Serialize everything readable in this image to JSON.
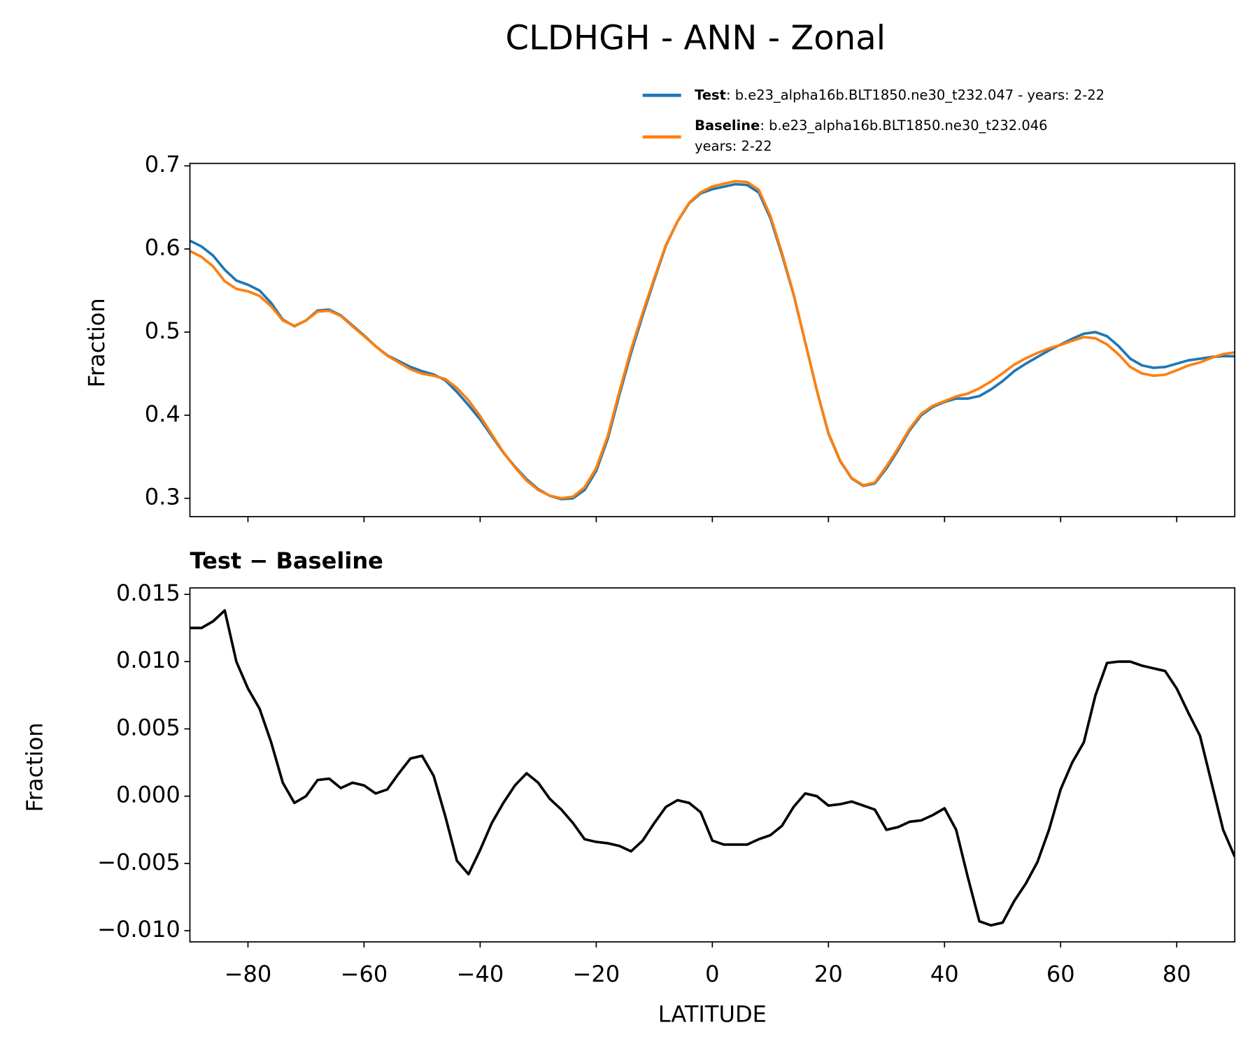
{
  "chart_data": [
    {
      "type": "line",
      "title": "CLDHGH - ANN - Zonal",
      "ylabel": "Fraction",
      "x": [
        -90,
        -88,
        -86,
        -84,
        -82,
        -80,
        -78,
        -76,
        -74,
        -72,
        -70,
        -68,
        -66,
        -64,
        -62,
        -60,
        -58,
        -56,
        -54,
        -52,
        -50,
        -48,
        -46,
        -44,
        -42,
        -40,
        -38,
        -36,
        -34,
        -32,
        -30,
        -28,
        -26,
        -24,
        -22,
        -20,
        -18,
        -16,
        -14,
        -12,
        -10,
        -8,
        -6,
        -4,
        -2,
        0,
        2,
        4,
        6,
        8,
        10,
        12,
        14,
        16,
        18,
        20,
        22,
        24,
        26,
        28,
        30,
        32,
        34,
        36,
        38,
        40,
        42,
        44,
        46,
        48,
        50,
        52,
        54,
        56,
        58,
        60,
        62,
        64,
        66,
        68,
        70,
        72,
        74,
        76,
        78,
        80,
        82,
        84,
        86,
        88,
        90
      ],
      "series": [
        {
          "name": "Test",
          "legend_text": [
            ": b.e23_alpha16b.BLT1850.ne30_t232.047 - years: 2-22"
          ],
          "color": "#1f77b4",
          "values": [
            0.61,
            0.603,
            0.592,
            0.575,
            0.562,
            0.557,
            0.55,
            0.535,
            0.515,
            0.507,
            0.514,
            0.526,
            0.527,
            0.52,
            0.508,
            0.496,
            0.483,
            0.472,
            0.465,
            0.458,
            0.453,
            0.449,
            0.442,
            0.428,
            0.412,
            0.395,
            0.375,
            0.355,
            0.338,
            0.323,
            0.311,
            0.303,
            0.299,
            0.3,
            0.31,
            0.333,
            0.372,
            0.425,
            0.475,
            0.52,
            0.563,
            0.604,
            0.633,
            0.655,
            0.667,
            0.672,
            0.675,
            0.678,
            0.677,
            0.668,
            0.637,
            0.593,
            0.545,
            0.488,
            0.43,
            0.378,
            0.345,
            0.324,
            0.315,
            0.318,
            0.336,
            0.358,
            0.382,
            0.4,
            0.41,
            0.416,
            0.42,
            0.42,
            0.423,
            0.431,
            0.441,
            0.453,
            0.462,
            0.47,
            0.478,
            0.485,
            0.492,
            0.498,
            0.5,
            0.495,
            0.483,
            0.468,
            0.46,
            0.457,
            0.458,
            0.462,
            0.466,
            0.468,
            0.47,
            0.471,
            0.471
          ]
        },
        {
          "name": "Baseline",
          "legend_text": [
            ": b.e23_alpha16b.BLT1850.ne30_t232.046",
            "years: 2-22"
          ],
          "color": "#ff7f0e",
          "values": [
            0.5975,
            0.5905,
            0.579,
            0.5612,
            0.552,
            0.549,
            0.5435,
            0.531,
            0.514,
            0.5075,
            0.514,
            0.5248,
            0.5257,
            0.5194,
            0.507,
            0.4952,
            0.4828,
            0.4715,
            0.4633,
            0.4552,
            0.45,
            0.4475,
            0.4435,
            0.4328,
            0.4178,
            0.399,
            0.377,
            0.3555,
            0.3372,
            0.3213,
            0.31,
            0.3032,
            0.3,
            0.302,
            0.3132,
            0.3364,
            0.3755,
            0.4287,
            0.4791,
            0.5233,
            0.565,
            0.6048,
            0.6333,
            0.6555,
            0.6682,
            0.6753,
            0.6786,
            0.6816,
            0.6806,
            0.6712,
            0.6399,
            0.5952,
            0.5458,
            0.4878,
            0.43,
            0.3787,
            0.3456,
            0.3244,
            0.3157,
            0.319,
            0.3385,
            0.3603,
            0.3839,
            0.4018,
            0.4114,
            0.4169,
            0.4225,
            0.426,
            0.4323,
            0.4406,
            0.4504,
            0.4608,
            0.4685,
            0.4749,
            0.4805,
            0.4845,
            0.4895,
            0.494,
            0.4925,
            0.4851,
            0.473,
            0.458,
            0.4503,
            0.4475,
            0.4487,
            0.454,
            0.4598,
            0.4635,
            0.469,
            0.4735,
            0.4755
          ]
        }
      ],
      "xlim": [
        -90,
        90
      ],
      "ylim": [
        0.278,
        0.703
      ],
      "yticks": [
        0.3,
        0.4,
        0.5,
        0.6,
        0.7
      ]
    },
    {
      "type": "line",
      "title": "Test − Baseline",
      "ylabel": "Fraction",
      "xlabel": "LATITUDE",
      "x": [
        -90,
        -88,
        -86,
        -84,
        -82,
        -80,
        -78,
        -76,
        -74,
        -72,
        -70,
        -68,
        -66,
        -64,
        -62,
        -60,
        -58,
        -56,
        -54,
        -52,
        -50,
        -48,
        -46,
        -44,
        -42,
        -40,
        -38,
        -36,
        -34,
        -32,
        -30,
        -28,
        -26,
        -24,
        -22,
        -20,
        -18,
        -16,
        -14,
        -12,
        -10,
        -8,
        -6,
        -4,
        -2,
        0,
        2,
        4,
        6,
        8,
        10,
        12,
        14,
        16,
        18,
        20,
        22,
        24,
        26,
        28,
        30,
        32,
        34,
        36,
        38,
        40,
        42,
        44,
        46,
        48,
        50,
        52,
        54,
        56,
        58,
        60,
        62,
        64,
        66,
        68,
        70,
        72,
        74,
        76,
        78,
        80,
        82,
        84,
        86,
        88,
        90
      ],
      "series": [
        {
          "color": "#000000",
          "values": [
            0.0125,
            0.0125,
            0.013,
            0.0138,
            0.01,
            0.008,
            0.0065,
            0.004,
            0.001,
            -0.0005,
            0.0,
            0.0012,
            0.0013,
            0.0006,
            0.001,
            0.0008,
            0.0002,
            0.0005,
            0.0017,
            0.0028,
            0.003,
            0.0015,
            -0.0015,
            -0.0048,
            -0.0058,
            -0.004,
            -0.002,
            -0.0005,
            0.0008,
            0.0017,
            0.001,
            -0.0002,
            -0.001,
            -0.002,
            -0.0032,
            -0.0034,
            -0.0035,
            -0.0037,
            -0.0041,
            -0.0033,
            -0.002,
            -0.0008,
            -0.0003,
            -0.0005,
            -0.0012,
            -0.0033,
            -0.0036,
            -0.0036,
            -0.0036,
            -0.0032,
            -0.0029,
            -0.0022,
            -0.0008,
            0.0002,
            0.0,
            -0.0007,
            -0.0006,
            -0.0004,
            -0.0007,
            -0.001,
            -0.0025,
            -0.0023,
            -0.0019,
            -0.0018,
            -0.0014,
            -0.0009,
            -0.0025,
            -0.006,
            -0.0093,
            -0.0096,
            -0.0094,
            -0.0078,
            -0.0065,
            -0.0049,
            -0.0025,
            0.0005,
            0.0025,
            0.004,
            0.0075,
            0.0099,
            0.01,
            0.01,
            0.0097,
            0.0095,
            0.0093,
            0.008,
            0.0062,
            0.0045,
            0.001,
            -0.0025,
            -0.0045
          ]
        }
      ],
      "xlim": [
        -90,
        90
      ],
      "ylim": [
        -0.01083,
        0.01548
      ],
      "yticks": [
        {
          "value": -0.01,
          "label": "−0.010"
        },
        {
          "value": -0.005,
          "label": "−0.005"
        },
        {
          "value": 0,
          "label": "0.000"
        },
        {
          "value": 0.005,
          "label": "0.005"
        },
        {
          "value": 0.01,
          "label": "0.010"
        },
        {
          "value": 0.015,
          "label": "0.015"
        }
      ],
      "xticks": [
        {
          "value": -80,
          "label": "−80"
        },
        {
          "value": -60,
          "label": "−60"
        },
        {
          "value": -40,
          "label": "−40"
        },
        {
          "value": -20,
          "label": "−20"
        },
        0,
        20,
        40,
        60,
        80
      ]
    }
  ]
}
